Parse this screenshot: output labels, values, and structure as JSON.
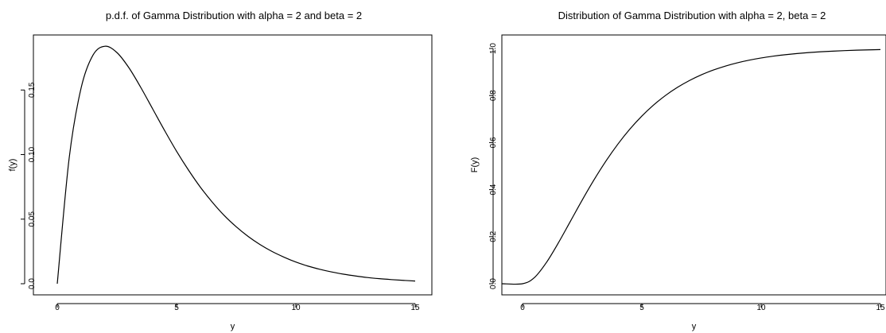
{
  "chart_data": [
    {
      "type": "line",
      "title": "p.d.f. of Gamma Distribution with alpha = 2 and beta = 2",
      "xlabel": "y",
      "ylabel": "f(y)",
      "xlim": [
        0,
        15
      ],
      "ylim": [
        0,
        0.184
      ],
      "xticks": [
        0,
        5,
        10,
        15
      ],
      "xtick_labels": [
        "0",
        "5",
        "10",
        "15"
      ],
      "yticks": [
        0.0,
        0.05,
        0.1,
        0.15
      ],
      "ytick_labels": [
        "0.0",
        "0.05",
        "0.10",
        "0.15"
      ],
      "grid": false,
      "series": [
        {
          "x": [
            0,
            0.5,
            1,
            1.5,
            2,
            2.5,
            3,
            3.5,
            4,
            4.5,
            5,
            5.5,
            6,
            6.5,
            7,
            7.5,
            8,
            8.5,
            9,
            9.5,
            10,
            10.5,
            11,
            11.5,
            12,
            12.5,
            13,
            13.5,
            14,
            14.5,
            15
          ],
          "values": [
            0,
            0.0974,
            0.1516,
            0.1771,
            0.1839,
            0.179,
            0.1673,
            0.152,
            0.1353,
            0.1186,
            0.1026,
            0.088,
            0.0747,
            0.0631,
            0.0528,
            0.0441,
            0.0366,
            0.0303,
            0.025,
            0.0206,
            0.0168,
            0.0137,
            0.0112,
            0.0091,
            0.0074,
            0.006,
            0.0048,
            0.0039,
            0.0032,
            0.0026,
            0.0021
          ]
        }
      ]
    },
    {
      "type": "line",
      "title": "Distribution of Gamma Distribution with alpha = 2, beta = 2",
      "xlabel": "y",
      "ylabel": "F(y)",
      "xlim": [
        0,
        15
      ],
      "ylim": [
        0,
        1
      ],
      "xticks": [
        0,
        5,
        10,
        15
      ],
      "xtick_labels": [
        "0",
        "5",
        "10",
        "15"
      ],
      "yticks": [
        0.0,
        0.2,
        0.4,
        0.6,
        0.8,
        1.0
      ],
      "ytick_labels": [
        "0.0",
        "0.2",
        "0.4",
        "0.6",
        "0.8",
        "1.0"
      ],
      "grid": false,
      "series": [
        {
          "x": [
            -1,
            0,
            0.5,
            1,
            1.5,
            2,
            2.5,
            3,
            3.5,
            4,
            4.5,
            5,
            5.5,
            6,
            6.5,
            7,
            7.5,
            8,
            8.5,
            9,
            9.5,
            10,
            10.5,
            11,
            11.5,
            12,
            12.5,
            13,
            13.5,
            14,
            14.5,
            15
          ],
          "values": [
            0,
            0,
            0.0265,
            0.0902,
            0.1734,
            0.2642,
            0.3554,
            0.4422,
            0.5221,
            0.594,
            0.6575,
            0.7127,
            0.7603,
            0.8009,
            0.8352,
            0.8641,
            0.8883,
            0.9084,
            0.9251,
            0.9389,
            0.9503,
            0.9596,
            0.9672,
            0.9734,
            0.9785,
            0.9826,
            0.986,
            0.9887,
            0.9909,
            0.9927,
            0.9941,
            0.9953
          ]
        }
      ]
    }
  ]
}
